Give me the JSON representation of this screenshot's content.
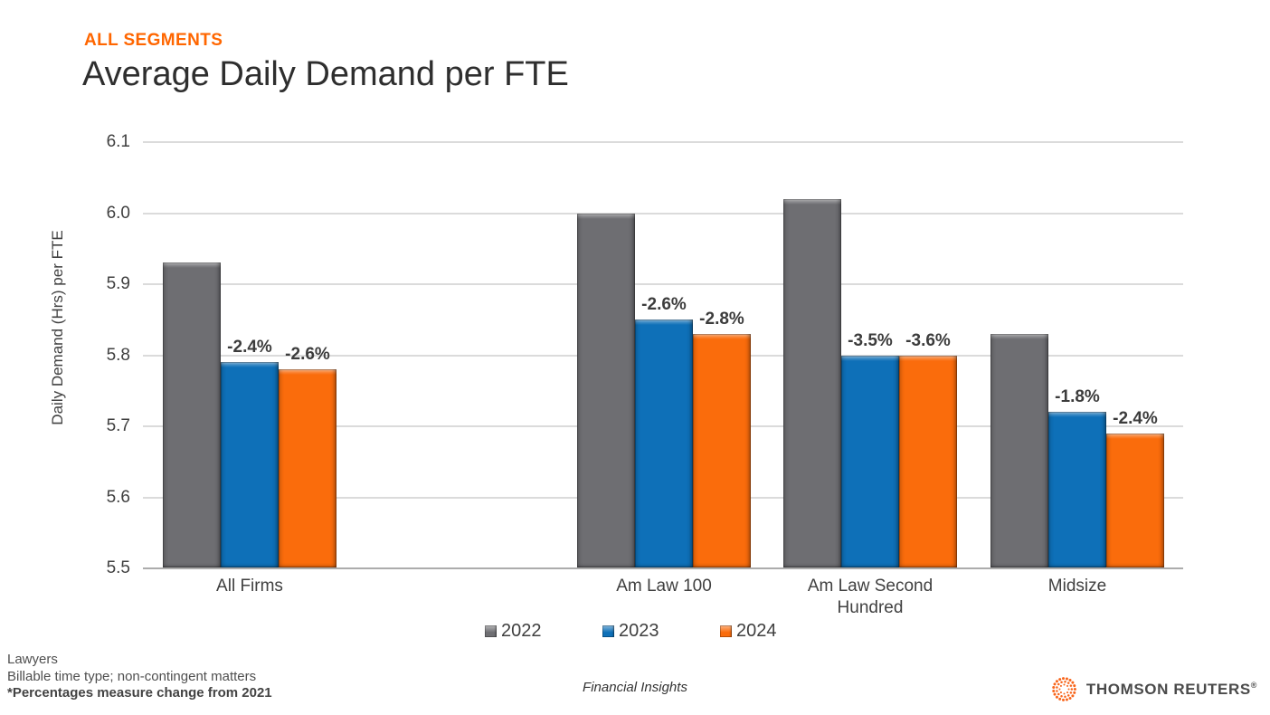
{
  "header": {
    "eyebrow": "ALL SEGMENTS",
    "title": "Average Daily Demand per FTE"
  },
  "chart_data": {
    "type": "bar",
    "title": "Average Daily Demand per FTE",
    "subtitle": "ALL SEGMENTS",
    "xlabel": "",
    "ylabel": "Daily Demand (Hrs) per FTE",
    "ylim": [
      5.5,
      6.1
    ],
    "yticks": [
      "6.1",
      "6.0",
      "5.9",
      "5.8",
      "5.7",
      "5.6",
      "5.5"
    ],
    "grid": true,
    "legend_position": "bottom",
    "categories": [
      "All Firms",
      "Am Law 100",
      "Am Law Second Hundred",
      "Midsize"
    ],
    "series": [
      {
        "name": "2022",
        "color": "#6E6E72",
        "values": [
          5.93,
          6.0,
          6.02,
          5.83
        ]
      },
      {
        "name": "2023",
        "color": "#0E70B8",
        "values": [
          5.79,
          5.85,
          5.8,
          5.72
        ],
        "labels": [
          "-2.4%",
          "-2.6%",
          "-3.5%",
          "-1.8%"
        ]
      },
      {
        "name": "2024",
        "color": "#FA6C0C",
        "values": [
          5.78,
          5.83,
          5.8,
          5.69
        ],
        "labels": [
          "-2.6%",
          "-2.8%",
          "-3.6%",
          "-2.4%"
        ]
      }
    ],
    "annotation_note": "*Percentages measure change from 2021"
  },
  "footer": {
    "notes": [
      "Lawyers",
      "Billable time type; non-contingent matters",
      "*Percentages measure change from 2021"
    ],
    "caption": "Financial Insights",
    "brand": "THOMSON REUTERS",
    "brand_reg": "®"
  },
  "colors": {
    "accent_orange": "#FF6600",
    "bar_gray": "#6E6E72",
    "bar_blue": "#0E70B8",
    "bar_orange": "#FA6C0C",
    "gridline": "#DBDBDB",
    "axis_line": "#ACACAC",
    "text_gray": "#404040"
  }
}
